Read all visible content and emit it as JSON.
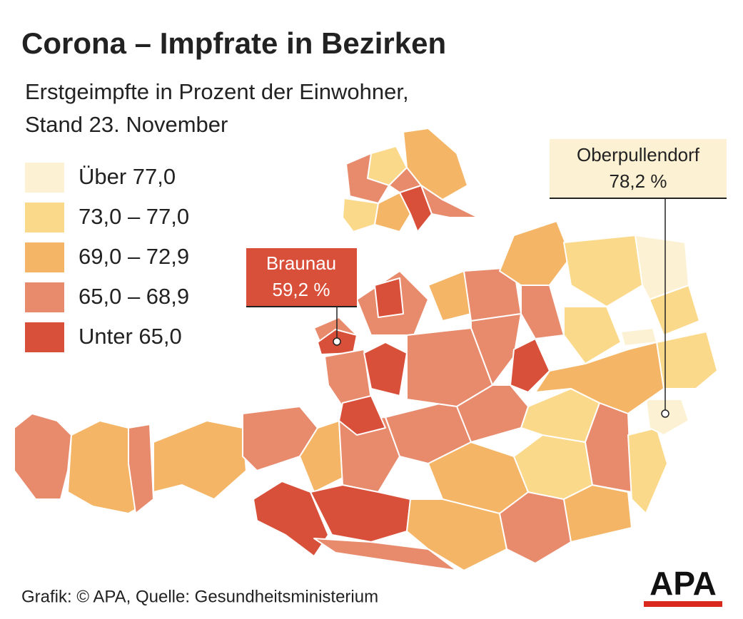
{
  "header": {
    "title": "Corona – Impfrate in Bezirken",
    "subtitle": [
      "Erstgeimpfte in Prozent der Einwohner,",
      "Stand 23. November"
    ]
  },
  "legend": [
    {
      "label": "Über 77,0",
      "color": "#fdf1d4"
    },
    {
      "label": "73,0 – 77,0",
      "color": "#fbd98a"
    },
    {
      "label": "69,0 – 72,9",
      "color": "#f5b566"
    },
    {
      "label": "65,0 – 68,9",
      "color": "#e88b6d"
    },
    {
      "label": "Unter 65,0",
      "color": "#d9503a"
    }
  ],
  "callouts": [
    {
      "name": "Braunau",
      "value_label": "59,2 %"
    },
    {
      "name": "Oberpullendorf",
      "value_label": "78,2 %"
    }
  ],
  "footer": {
    "source": "Grafik: © APA, Quelle: Gesundheitsministerium",
    "logo": "APA"
  }
}
